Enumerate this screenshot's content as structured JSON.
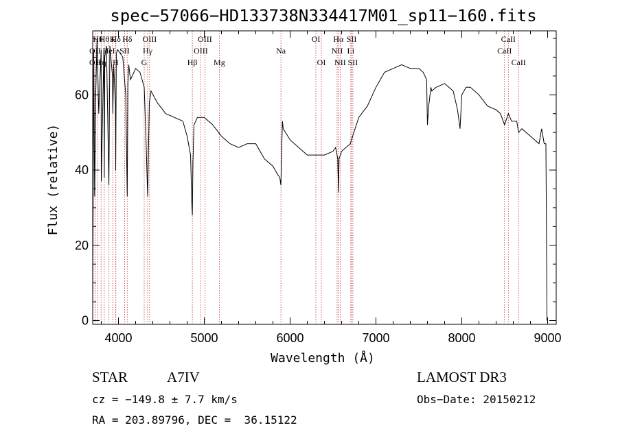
{
  "chart_data": {
    "type": "line",
    "title": "spec−57066−HD133738N334417M01_sp11−160.fits",
    "xlabel": "Wavelength (Å)",
    "ylabel": "Flux (relative)",
    "xlim": [
      3700,
      9100
    ],
    "ylim": [
      -1,
      77
    ],
    "xticks": [
      4000,
      5000,
      6000,
      7000,
      8000,
      9000
    ],
    "yticks": [
      0,
      20,
      40,
      60
    ],
    "xtick_labels": [
      "4000",
      "5000",
      "6000",
      "7000",
      "8000",
      "9000"
    ],
    "ytick_labels": [
      "0",
      "20",
      "40",
      "60"
    ],
    "series": [
      {
        "name": "spectrum",
        "x": [
          3700,
          3705,
          3712,
          3722,
          3735,
          3750,
          3770,
          3798,
          3800,
          3830,
          3835,
          3840,
          3860,
          3889,
          3900,
          3930,
          3934,
          3945,
          3965,
          3968,
          3975,
          3990,
          4050,
          4085,
          4102,
          4110,
          4120,
          4140,
          4200,
          4250,
          4300,
          4320,
          4340,
          4360,
          4380,
          4450,
          4550,
          4650,
          4750,
          4800,
          4840,
          4855,
          4861,
          4868,
          4880,
          4920,
          5000,
          5100,
          5200,
          5300,
          5400,
          5500,
          5600,
          5700,
          5800,
          5850,
          5880,
          5893,
          5900,
          5910,
          5920,
          6000,
          6100,
          6200,
          6300,
          6400,
          6500,
          6530,
          6555,
          6563,
          6570,
          6600,
          6700,
          6800,
          6900,
          7000,
          7100,
          7200,
          7300,
          7400,
          7500,
          7550,
          7590,
          7600,
          7610,
          7620,
          7640,
          7650,
          7700,
          7800,
          7900,
          7950,
          7980,
          8000,
          8050,
          8100,
          8200,
          8300,
          8400,
          8450,
          8498,
          8542,
          8580,
          8640,
          8662,
          8700,
          8800,
          8850,
          8900,
          8930,
          8960,
          8980,
          8985,
          8990,
          8993
        ],
        "y": [
          2,
          30,
          72,
          33,
          60,
          75,
          55,
          72,
          37,
          72,
          38,
          70,
          73,
          36,
          73,
          65,
          55,
          68,
          57,
          40,
          71,
          72,
          70,
          60,
          33,
          63,
          68,
          64,
          67,
          66,
          62,
          49,
          33,
          58,
          61,
          58,
          55,
          54,
          53,
          49,
          44,
          31,
          28,
          42,
          52,
          54,
          54,
          52,
          49,
          47,
          46,
          47,
          47,
          43,
          41,
          39,
          38,
          36,
          44,
          53,
          51,
          48,
          46,
          44,
          44,
          44,
          45,
          46,
          43,
          34,
          43,
          45,
          47,
          54,
          57,
          62,
          66,
          67,
          68,
          67,
          67,
          66,
          64,
          52,
          56,
          58,
          62,
          61,
          62,
          63,
          61,
          56,
          51,
          60,
          62,
          62,
          60,
          57,
          56,
          55,
          52,
          55,
          53,
          53,
          50,
          51,
          49,
          48,
          47,
          51,
          47,
          47,
          30,
          10,
          0
        ]
      }
    ],
    "spectral_lines": [
      {
        "x": 3727,
        "label": "OII",
        "row": 2
      },
      {
        "x": 3727,
        "label": "OII",
        "row": 3
      },
      {
        "x": 3760,
        "label": "Hθ",
        "row": 1
      },
      {
        "x": 3798,
        "label": "Hη",
        "row": 3
      },
      {
        "x": 3835,
        "label": "Hθ",
        "row": 1
      },
      {
        "x": 3889,
        "label": "HeI",
        "row": 2
      },
      {
        "x": 3934,
        "label": "K",
        "row": 1
      },
      {
        "x": 3968,
        "label": "H",
        "row": 3
      },
      {
        "x": 3970,
        "label": "Hδ",
        "row": 1
      },
      {
        "x": 4072,
        "label": "SII",
        "row": 2
      },
      {
        "x": 4102,
        "label": "Hδ",
        "row": 1
      },
      {
        "x": 4300,
        "label": "G",
        "row": 3
      },
      {
        "x": 4340,
        "label": "Hγ",
        "row": 2
      },
      {
        "x": 4363,
        "label": "OIII",
        "row": 1
      },
      {
        "x": 4861,
        "label": "Hβ",
        "row": 3
      },
      {
        "x": 4959,
        "label": "OIII",
        "row": 2
      },
      {
        "x": 5007,
        "label": "OIII",
        "row": 1
      },
      {
        "x": 5175,
        "label": "Mg",
        "row": 3
      },
      {
        "x": 5893,
        "label": "Na",
        "row": 2
      },
      {
        "x": 6300,
        "label": "OI",
        "row": 1
      },
      {
        "x": 6364,
        "label": "OI",
        "row": 3
      },
      {
        "x": 6548,
        "label": "NII",
        "row": 2
      },
      {
        "x": 6563,
        "label": "Hα",
        "row": 1
      },
      {
        "x": 6583,
        "label": "NII",
        "row": 3
      },
      {
        "x": 6707,
        "label": "Li",
        "row": 2
      },
      {
        "x": 6716,
        "label": "SII",
        "row": 1
      },
      {
        "x": 6731,
        "label": "SII",
        "row": 3
      },
      {
        "x": 8498,
        "label": "CaII",
        "row": 2
      },
      {
        "x": 8542,
        "label": "CaII",
        "row": 1
      },
      {
        "x": 8662,
        "label": "CaII",
        "row": 3
      }
    ]
  },
  "info": {
    "object_type": "STAR",
    "subclass": "A7IV",
    "survey": "LAMOST DR3",
    "cz": "cz = −149.8 ± 7.7 km/s",
    "obs_date": "Obs−Date: 20150212",
    "coords": "RA = 203.89796, DEC =  36.15122"
  }
}
